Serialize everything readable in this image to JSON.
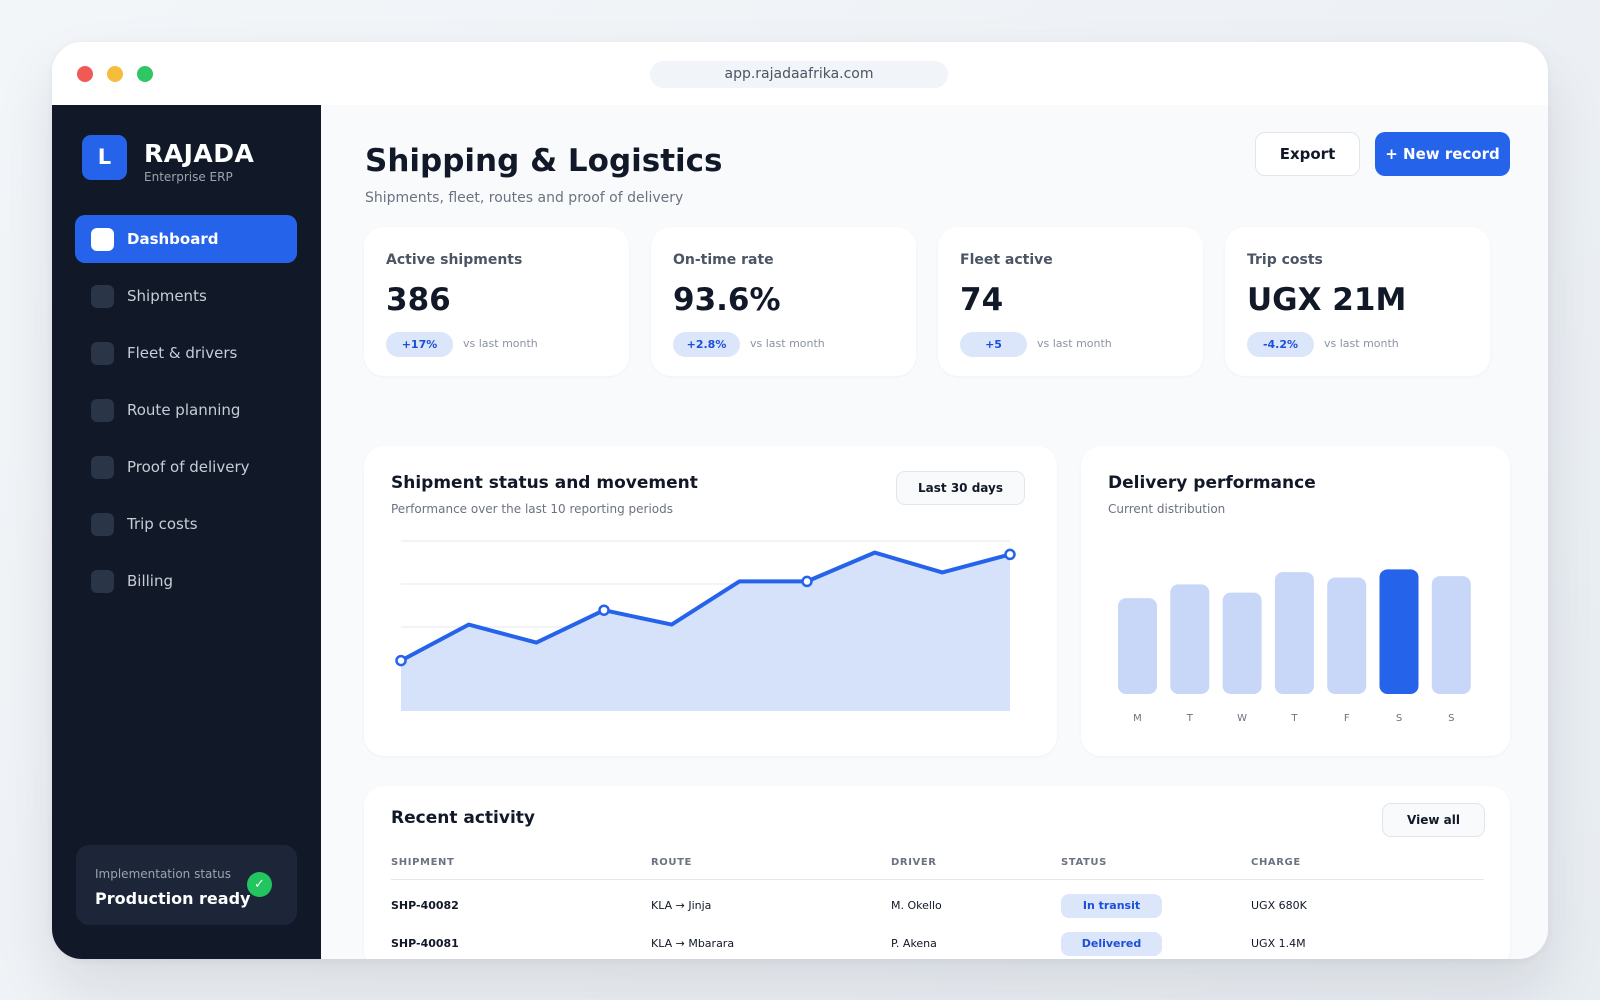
{
  "browser": {
    "url": "app.rajadaafrika.com"
  },
  "brand": {
    "badge_letter": "L",
    "name": "RAJADA",
    "tagline": "Enterprise ERP",
    "accent_color": "#2563eb"
  },
  "sidebar": {
    "items": [
      {
        "label": "Dashboard",
        "active": true
      },
      {
        "label": "Shipments",
        "active": false
      },
      {
        "label": "Fleet & drivers",
        "active": false
      },
      {
        "label": "Route planning",
        "active": false
      },
      {
        "label": "Proof of delivery",
        "active": false
      },
      {
        "label": "Trip costs",
        "active": false
      },
      {
        "label": "Billing",
        "active": false
      }
    ],
    "implementation": {
      "label": "Implementation status",
      "value": "Production ready",
      "icon": "check-icon"
    }
  },
  "header": {
    "title": "Shipping & Logistics",
    "subtitle": "Shipments, fleet, routes and proof of delivery",
    "export_label": "Export",
    "new_record_label": "+ New record"
  },
  "stats": [
    {
      "label": "Active shipments",
      "value": "386",
      "delta": "+17%",
      "compare": "vs last month"
    },
    {
      "label": "On-time rate",
      "value": "93.6%",
      "delta": "+2.8%",
      "compare": "vs last month"
    },
    {
      "label": "Fleet active",
      "value": "74",
      "delta": "+5",
      "compare": "vs last month"
    },
    {
      "label": "Trip costs",
      "value": "UGX 21M",
      "delta": "-4.2%",
      "compare": "vs last month"
    }
  ],
  "movement_panel": {
    "title": "Shipment status and movement",
    "subtitle": "Performance over the last 10 reporting periods",
    "range_label": "Last 30 days"
  },
  "performance_panel": {
    "title": "Delivery performance",
    "subtitle": "Current distribution"
  },
  "chart_data": [
    {
      "type": "area",
      "x": [
        1,
        2,
        3,
        4,
        5,
        6,
        7,
        8,
        9,
        10
      ],
      "series": [
        {
          "values": [
            28,
            48,
            38,
            56,
            48,
            72,
            72,
            88,
            77,
            87
          ],
          "color": "#2563eb",
          "fill": "#d6e2fa"
        }
      ],
      "highlighted_indices": [
        0,
        3,
        6,
        9
      ],
      "ylim": [
        0,
        100
      ],
      "grid": true
    },
    {
      "type": "bar",
      "categories": [
        "M",
        "T",
        "W",
        "T",
        "F",
        "S",
        "S"
      ],
      "values": [
        70,
        80,
        74,
        89,
        85,
        91,
        86
      ],
      "highlight_index": 5,
      "ylim": [
        0,
        100
      ],
      "bar_color": "#c8d7f8",
      "highlight_color": "#2563eb"
    }
  ],
  "activity": {
    "title": "Recent activity",
    "view_all_label": "View all",
    "columns": [
      "SHIPMENT",
      "ROUTE",
      "DRIVER",
      "STATUS",
      "CHARGE"
    ],
    "rows": [
      {
        "shipment": "SHP-40082",
        "route": "KLA → Jinja",
        "driver": "M. Okello",
        "status": "In transit",
        "charge": "UGX 680K"
      },
      {
        "shipment": "SHP-40081",
        "route": "KLA → Mbarara",
        "driver": "P. Akena",
        "status": "Delivered",
        "charge": "UGX 1.4M"
      }
    ]
  }
}
